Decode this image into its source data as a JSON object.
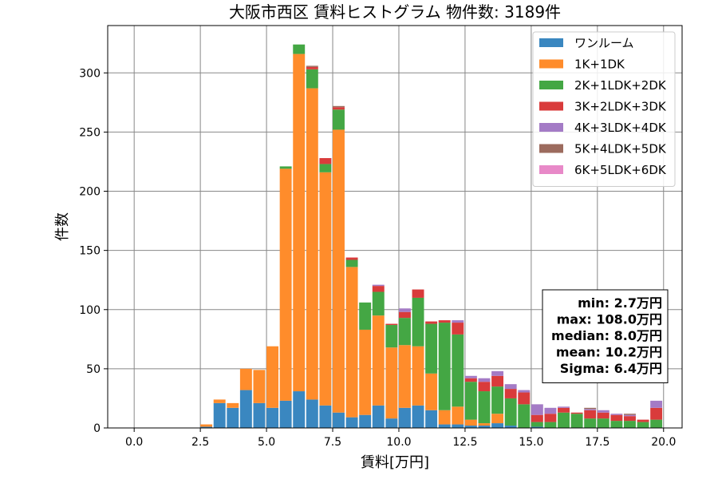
{
  "chart_data": {
    "type": "bar",
    "stacked": true,
    "title": "大阪市西区 賃料ヒストグラム 物件数: 3189件",
    "xlabel": "賃料[万円]",
    "ylabel": "件数",
    "xlim": [
      -1.0,
      20.7
    ],
    "ylim": [
      0,
      340
    ],
    "xticks": [
      0.0,
      2.5,
      5.0,
      7.5,
      10.0,
      12.5,
      15.0,
      17.5,
      20.0
    ],
    "xtick_labels": [
      "0.0",
      "2.5",
      "5.0",
      "7.5",
      "10.0",
      "12.5",
      "15.0",
      "17.5",
      "20.0"
    ],
    "yticks": [
      0,
      50,
      100,
      150,
      200,
      250,
      300
    ],
    "ytick_labels": [
      "0",
      "50",
      "100",
      "150",
      "200",
      "250",
      "300"
    ],
    "grid": true,
    "legend_position": "top-right",
    "bin_width": 0.5,
    "bin_starts": [
      2.5,
      3.0,
      3.5,
      4.0,
      4.5,
      5.0,
      5.5,
      6.0,
      6.5,
      7.0,
      7.5,
      8.0,
      8.5,
      9.0,
      9.5,
      10.0,
      10.5,
      11.0,
      11.5,
      12.0,
      12.5,
      13.0,
      13.5,
      14.0,
      14.5,
      15.0,
      15.5,
      16.0,
      16.5,
      17.0,
      17.5,
      18.0,
      18.5,
      19.0,
      19.5
    ],
    "series": [
      {
        "name": "ワンルーム",
        "color": "#3a87c0",
        "values": [
          1,
          21,
          17,
          32,
          21,
          17,
          23,
          31,
          24,
          19,
          13,
          9,
          11,
          19,
          8,
          17,
          19,
          15,
          3,
          3,
          2,
          2,
          4,
          2,
          0,
          1,
          0,
          0,
          0,
          0,
          0,
          0,
          0,
          0,
          0
        ]
      },
      {
        "name": "1K+1DK",
        "color": "#ff8c2b",
        "values": [
          2,
          3,
          4,
          18,
          28,
          52,
          196,
          285,
          263,
          197,
          239,
          127,
          72,
          76,
          60,
          53,
          50,
          31,
          12,
          15,
          5,
          2,
          8,
          0,
          0,
          0,
          0,
          0,
          0,
          0,
          0,
          0,
          0,
          0,
          0
        ]
      },
      {
        "name": "2K+1LDK+2DK",
        "color": "#44a744",
        "values": [
          0,
          0,
          0,
          0,
          0,
          0,
          2,
          8,
          16,
          7,
          17,
          6,
          23,
          20,
          19,
          23,
          41,
          42,
          74,
          61,
          32,
          27,
          23,
          23,
          20,
          4,
          5,
          13,
          12,
          8,
          8,
          6,
          6,
          5,
          7
        ]
      },
      {
        "name": "3K+2LDK+3DK",
        "color": "#d93b3b",
        "values": [
          0,
          0,
          0,
          0,
          0,
          0,
          0,
          0,
          2,
          5,
          2,
          2,
          0,
          5,
          1,
          5,
          7,
          2,
          2,
          10,
          3,
          8,
          9,
          8,
          10,
          6,
          7,
          4,
          1,
          7,
          5,
          5,
          4,
          2,
          10
        ]
      },
      {
        "name": "4K+3LDK+4DK",
        "color": "#a47bc6",
        "values": [
          0,
          0,
          0,
          0,
          0,
          0,
          0,
          0,
          0,
          0,
          0,
          0,
          0,
          1,
          0,
          3,
          0,
          0,
          0,
          2,
          2,
          3,
          4,
          4,
          2,
          9,
          5,
          1,
          0,
          1,
          2,
          1,
          1,
          0,
          6
        ]
      },
      {
        "name": "5K+4LDK+5DK",
        "color": "#9c6b5e",
        "values": [
          0,
          0,
          0,
          0,
          0,
          0,
          0,
          0,
          1,
          0,
          1,
          0,
          0,
          0,
          0,
          0,
          0,
          0,
          0,
          0,
          0,
          0,
          0,
          0,
          0,
          0,
          0,
          0,
          0,
          1,
          0,
          0,
          1,
          0,
          0
        ]
      },
      {
        "name": "6K+5LDK+6DK",
        "color": "#e889c8",
        "values": [
          0,
          0,
          0,
          0,
          0,
          0,
          0,
          0,
          0,
          0,
          0,
          0,
          0,
          0,
          0,
          0,
          0,
          0,
          0,
          0,
          0,
          0,
          0,
          0,
          0,
          0,
          0,
          0,
          0,
          0,
          0,
          0,
          0,
          0,
          0
        ]
      }
    ],
    "stats": [
      "min: 2.7万円",
      "max: 108.0万円",
      "median: 8.0万円",
      "mean: 10.2万円",
      "Sigma: 6.4万円"
    ]
  }
}
